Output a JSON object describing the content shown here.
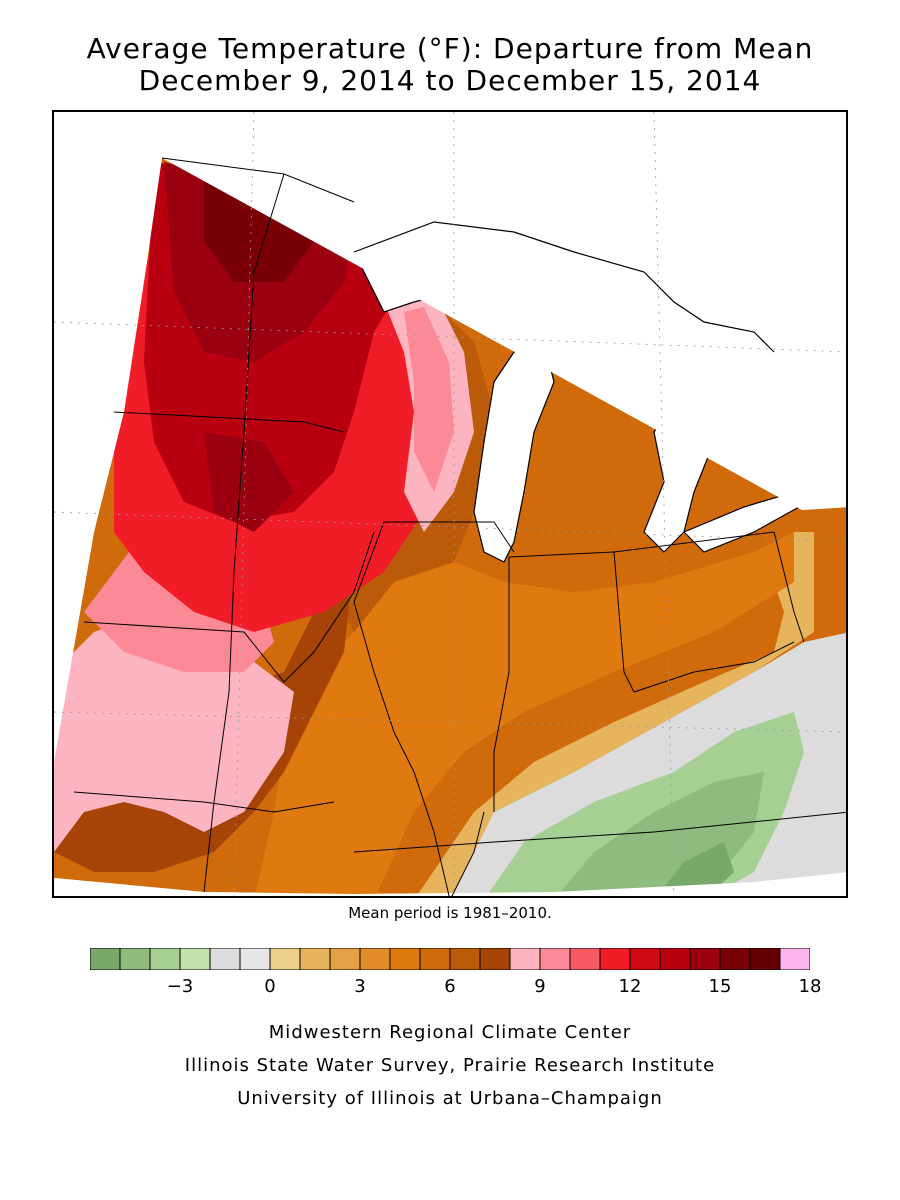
{
  "title": {
    "line1": "Average Temperature (°F): Departure from Mean",
    "line2": "December 9, 2014 to December 15, 2014"
  },
  "mean_note": "Mean period is 1981–2010.",
  "legend": {
    "colors": [
      "#78a86a",
      "#8fbb7f",
      "#a6cf94",
      "#bfe3ab",
      "#dcdcdc",
      "#e6e6e6",
      "#ecd08a",
      "#e6b45c",
      "#e4a047",
      "#e38e28",
      "#e07a10",
      "#d06a0a",
      "#bb5a08",
      "#a54406",
      "#fcb4c0",
      "#fc8a96",
      "#f85a64",
      "#f01c28",
      "#d00a14",
      "#b80010",
      "#9a0010",
      "#7a0008",
      "#640004",
      "#fcb4ec"
    ],
    "ticks": [
      {
        "label": "−3",
        "value": -3
      },
      {
        "label": "0",
        "value": 0
      },
      {
        "label": "3",
        "value": 3
      },
      {
        "label": "6",
        "value": 6
      },
      {
        "label": "9",
        "value": 9
      },
      {
        "label": "12",
        "value": 12
      },
      {
        "label": "15",
        "value": 15
      },
      {
        "label": "18",
        "value": 18
      }
    ],
    "min": -5,
    "max": 18
  },
  "map": {
    "regions": [
      {
        "name": "minnesota-core",
        "color": "#b80010"
      },
      {
        "name": "dakota-east",
        "color": "#d00a14"
      },
      {
        "name": "iowa-south",
        "color": "#fc8a96"
      },
      {
        "name": "wisconsin",
        "color": "#bb5a08"
      },
      {
        "name": "michigan",
        "color": "#d06a0a"
      },
      {
        "name": "illinois",
        "color": "#e07a10"
      },
      {
        "name": "ohio-valley",
        "color": "#dcdcdc"
      },
      {
        "name": "kentucky-tennessee",
        "color": "#a6cf94"
      }
    ]
  },
  "credits": {
    "line1": "Midwestern Regional Climate Center",
    "line2": "Illinois State Water Survey, Prairie Research Institute",
    "line3": "University of Illinois at Urbana–Champaign"
  }
}
